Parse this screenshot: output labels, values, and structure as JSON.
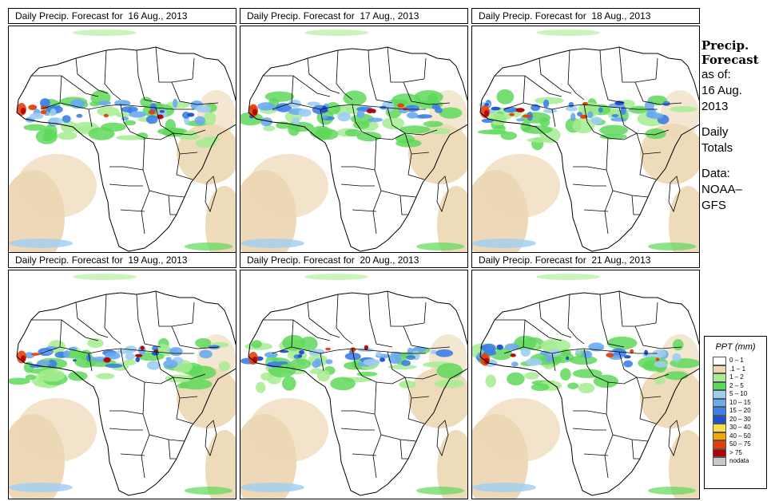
{
  "panels": [
    {
      "title": "Daily Precip. Forecast for  16 Aug., 2013",
      "date": "16 Aug., 2013"
    },
    {
      "title": "Daily Precip. Forecast for  17 Aug., 2013",
      "date": "17 Aug., 2013"
    },
    {
      "title": "Daily Precip. Forecast for  18 Aug., 2013",
      "date": "18 Aug., 2013"
    },
    {
      "title": "Daily Precip. Forecast for  19 Aug., 2013",
      "date": "19 Aug., 2013"
    },
    {
      "title": "Daily Precip. Forecast for  20 Aug., 2013",
      "date": "20 Aug., 2013"
    },
    {
      "title": "Daily Precip. Forecast for  21 Aug., 2013",
      "date": "21 Aug., 2013"
    }
  ],
  "sidebar": {
    "title_line1": "Precip.",
    "title_line2": "Forecast",
    "asof_label": "as of:",
    "asof_date_line1": "16 Aug.",
    "asof_date_line2": "2013",
    "totals_line1": "Daily",
    "totals_line2": "Totals",
    "data_line1": "Data:",
    "data_line2": "NOAA–",
    "data_line3": "GFS"
  },
  "legend": {
    "title": "PPT (mm)",
    "items": [
      {
        "label": "0 – 1",
        "color": "#ffffff"
      },
      {
        "label": ".1 – 1",
        "color": "#ecd7b3"
      },
      {
        "label": "1 – 2",
        "color": "#a6ec90"
      },
      {
        "label": "2 – 5",
        "color": "#5ed85a"
      },
      {
        "label": "5 – 10",
        "color": "#9fcdf2"
      },
      {
        "label": "10 – 15",
        "color": "#6aaaee"
      },
      {
        "label": "15 – 20",
        "color": "#3c7fe6"
      },
      {
        "label": "20 – 30",
        "color": "#1e4fd2"
      },
      {
        "label": "30 – 40",
        "color": "#f4de4c"
      },
      {
        "label": "40 – 50",
        "color": "#f6a400"
      },
      {
        "label": "50 – 75",
        "color": "#e53e0c"
      },
      {
        "label": "> 75",
        "color": "#b00000"
      },
      {
        "label": "nodata",
        "color": "#c8c8c8"
      }
    ]
  }
}
